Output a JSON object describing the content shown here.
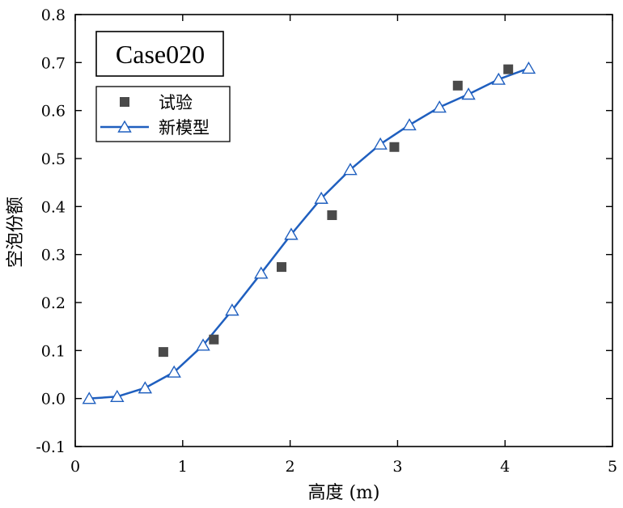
{
  "chart_data": {
    "type": "scatter",
    "xlabel": "高度 (m)",
    "ylabel": "空泡份额",
    "xlim": [
      0,
      5
    ],
    "ylim": [
      -0.1,
      0.8
    ],
    "x_ticks": [
      0,
      1,
      2,
      3,
      4,
      5
    ],
    "y_ticks": [
      -0.1,
      0.0,
      0.1,
      0.2,
      0.3,
      0.4,
      0.5,
      0.6,
      0.7,
      0.8
    ],
    "x_tick_labels": [
      "0",
      "1",
      "2",
      "3",
      "4",
      "5"
    ],
    "y_tick_labels": [
      "-0.1",
      "0.0",
      "0.1",
      "0.2",
      "0.3",
      "0.4",
      "0.5",
      "0.6",
      "0.7",
      "0.8"
    ],
    "grid": false,
    "annotation": "Case020",
    "legend_position": "top-left",
    "series": [
      {
        "name": "试验",
        "mark": "square",
        "color": "#4a4a4a",
        "x": [
          0.82,
          1.29,
          1.92,
          2.39,
          2.97,
          3.56,
          4.03
        ],
        "y": [
          0.097,
          0.123,
          0.274,
          0.382,
          0.524,
          0.652,
          0.686
        ]
      },
      {
        "name": "新模型",
        "mark": "line-triangle",
        "color": "#1f5fbf",
        "x": [
          0.13,
          0.39,
          0.65,
          0.92,
          1.19,
          1.46,
          1.73,
          2.01,
          2.29,
          2.56,
          2.84,
          3.11,
          3.39,
          3.66,
          3.94,
          4.22
        ],
        "y": [
          0.0,
          0.004,
          0.022,
          0.055,
          0.111,
          0.184,
          0.261,
          0.342,
          0.417,
          0.477,
          0.53,
          0.57,
          0.607,
          0.634,
          0.665,
          0.688
        ]
      }
    ]
  }
}
